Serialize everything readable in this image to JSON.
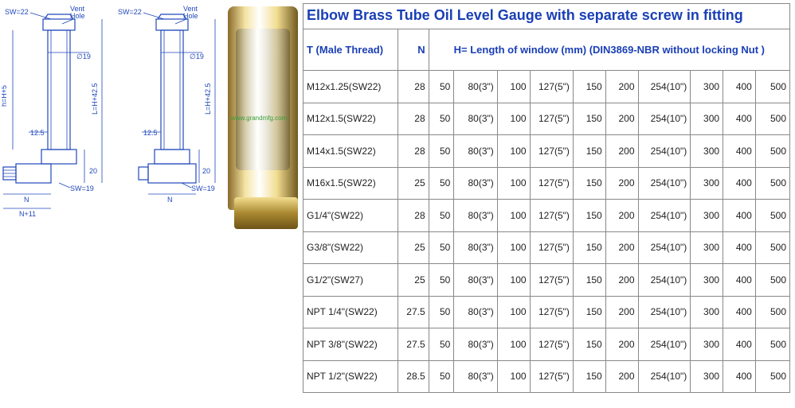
{
  "title": "Elbow Brass Tube Oil Level Gauge with separate screw in fitting",
  "headers": {
    "t": "T (Male Thread)",
    "n": "N",
    "h_full": "H= Length of window (mm)   (DIN3869-NBR  without locking Nut )"
  },
  "h_values": [
    "50",
    "80(3\")",
    "100",
    "127(5\")",
    "150",
    "200",
    "254(10\")",
    "300",
    "400",
    "500"
  ],
  "rows": [
    {
      "t": "M12x1.25(SW22)",
      "n": "28"
    },
    {
      "t": "M12x1.5(SW22)",
      "n": "28"
    },
    {
      "t": "M14x1.5(SW22)",
      "n": "28"
    },
    {
      "t": "M16x1.5(SW22)",
      "n": "25"
    },
    {
      "t": "G1/4\"(SW22)",
      "n": "28"
    },
    {
      "t": "G3/8\"(SW22)",
      "n": "25"
    },
    {
      "t": "G1/2\"(SW27)",
      "n": "25"
    },
    {
      "t": "NPT 1/4\"(SW22)",
      "n": "27.5"
    },
    {
      "t": "NPT 3/8\"(SW22)",
      "n": "27.5"
    },
    {
      "t": "NPT 1/2\"(SW22)",
      "n": "28.5"
    }
  ],
  "diagram": {
    "sw_top": "SW=22",
    "vent": "Vent\nHole",
    "d19": "∅19",
    "h_dim": "L=H+42.5",
    "lh5": "h=H+5",
    "r125": "12.5",
    "v20": "20",
    "sw19": "SW=19",
    "n_lbl": "N",
    "n11": "N+11"
  },
  "watermark": "www.grandmfg.com",
  "colors": {
    "heading": "#1a3fb5",
    "border": "#888888",
    "drawing": "#2048bb",
    "brass_dark": "#705820",
    "brass_light": "#f5e5a5"
  }
}
